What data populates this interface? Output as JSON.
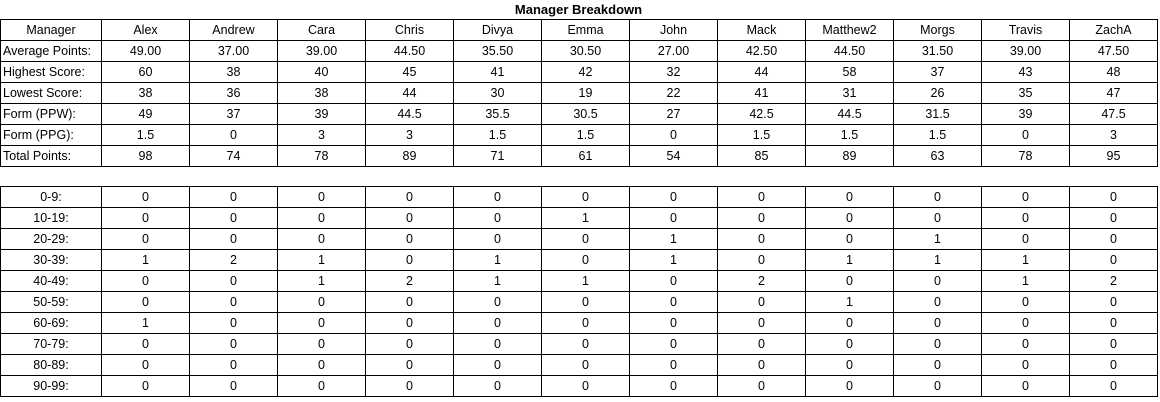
{
  "title": "Manager Breakdown",
  "header_label": "Manager",
  "managers": [
    "Alex",
    "Andrew",
    "Cara",
    "Chris",
    "Divya",
    "Emma",
    "John",
    "Mack",
    "Matthew2",
    "Morgs",
    "Travis",
    "ZachA"
  ],
  "stats": [
    {
      "label": "Average Points:",
      "values": [
        "49.00",
        "37.00",
        "39.00",
        "44.50",
        "35.50",
        "30.50",
        "27.00",
        "42.50",
        "44.50",
        "31.50",
        "39.00",
        "47.50"
      ]
    },
    {
      "label": "Highest Score:",
      "values": [
        "60",
        "38",
        "40",
        "45",
        "41",
        "42",
        "32",
        "44",
        "58",
        "37",
        "43",
        "48"
      ]
    },
    {
      "label": "Lowest Score:",
      "values": [
        "38",
        "36",
        "38",
        "44",
        "30",
        "19",
        "22",
        "41",
        "31",
        "26",
        "35",
        "47"
      ]
    },
    {
      "label": "Form (PPW):",
      "values": [
        "49",
        "37",
        "39",
        "44.5",
        "35.5",
        "30.5",
        "27",
        "42.5",
        "44.5",
        "31.5",
        "39",
        "47.5"
      ]
    },
    {
      "label": "Form (PPG):",
      "values": [
        "1.5",
        "0",
        "3",
        "3",
        "1.5",
        "1.5",
        "0",
        "1.5",
        "1.5",
        "1.5",
        "0",
        "3"
      ]
    },
    {
      "label": "Total Points:",
      "values": [
        "98",
        "74",
        "78",
        "89",
        "71",
        "61",
        "54",
        "85",
        "89",
        "63",
        "78",
        "95"
      ]
    }
  ],
  "distribution": [
    {
      "label": "0-9:",
      "values": [
        "0",
        "0",
        "0",
        "0",
        "0",
        "0",
        "0",
        "0",
        "0",
        "0",
        "0",
        "0"
      ]
    },
    {
      "label": "10-19:",
      "values": [
        "0",
        "0",
        "0",
        "0",
        "0",
        "1",
        "0",
        "0",
        "0",
        "0",
        "0",
        "0"
      ]
    },
    {
      "label": "20-29:",
      "values": [
        "0",
        "0",
        "0",
        "0",
        "0",
        "0",
        "1",
        "0",
        "0",
        "1",
        "0",
        "0"
      ]
    },
    {
      "label": "30-39:",
      "values": [
        "1",
        "2",
        "1",
        "0",
        "1",
        "0",
        "1",
        "0",
        "1",
        "1",
        "1",
        "0"
      ]
    },
    {
      "label": "40-49:",
      "values": [
        "0",
        "0",
        "1",
        "2",
        "1",
        "1",
        "0",
        "2",
        "0",
        "0",
        "1",
        "2"
      ]
    },
    {
      "label": "50-59:",
      "values": [
        "0",
        "0",
        "0",
        "0",
        "0",
        "0",
        "0",
        "0",
        "1",
        "0",
        "0",
        "0"
      ]
    },
    {
      "label": "60-69:",
      "values": [
        "1",
        "0",
        "0",
        "0",
        "0",
        "0",
        "0",
        "0",
        "0",
        "0",
        "0",
        "0"
      ]
    },
    {
      "label": "70-79:",
      "values": [
        "0",
        "0",
        "0",
        "0",
        "0",
        "0",
        "0",
        "0",
        "0",
        "0",
        "0",
        "0"
      ]
    },
    {
      "label": "80-89:",
      "values": [
        "0",
        "0",
        "0",
        "0",
        "0",
        "0",
        "0",
        "0",
        "0",
        "0",
        "0",
        "0"
      ]
    },
    {
      "label": "90-99:",
      "values": [
        "0",
        "0",
        "0",
        "0",
        "0",
        "0",
        "0",
        "0",
        "0",
        "0",
        "0",
        "0"
      ]
    }
  ]
}
